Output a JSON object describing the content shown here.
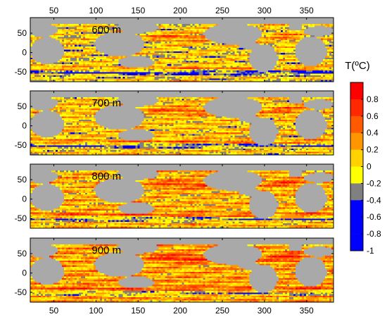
{
  "chart_data": {
    "type": "heatmap",
    "x_ticks": [
      "50",
      "100",
      "150",
      "200",
      "250",
      "300",
      "350"
    ],
    "x_tick_values": [
      50,
      100,
      150,
      200,
      250,
      300,
      350
    ],
    "xlim": [
      22,
      382
    ],
    "y_ticks": [
      "50",
      "0",
      "-50"
    ],
    "y_tick_values": [
      50,
      0,
      -50
    ],
    "ylim": [
      -75,
      90
    ],
    "x_ticks_top": true,
    "x_ticks_bottom": true,
    "grid": false,
    "land_color": "#a9a9a9",
    "panels": [
      {
        "label": "600 m",
        "depth_m": 600
      },
      {
        "label": "700 m",
        "depth_m": 700
      },
      {
        "label": "800 m",
        "depth_m": 800
      },
      {
        "label": "900 m",
        "depth_m": 900
      }
    ],
    "colorbar": {
      "title": "T(ºC)",
      "tick_labels": [
        "0.8",
        "0.6",
        "0.4",
        "0.2",
        "0",
        "-0.2",
        "-0.4",
        "-0.6",
        "-0.8",
        "-1"
      ],
      "tick_values": [
        0.8,
        0.6,
        0.4,
        0.2,
        0,
        -0.2,
        -0.4,
        -0.6,
        -0.8,
        -1
      ],
      "range": [
        -1,
        1
      ],
      "bins": [
        {
          "min": 0.8,
          "max": 1.0,
          "color": "#ff0000"
        },
        {
          "min": 0.6,
          "max": 0.8,
          "color": "#ff2800"
        },
        {
          "min": 0.4,
          "max": 0.6,
          "color": "#ff5a00"
        },
        {
          "min": 0.2,
          "max": 0.4,
          "color": "#ff9600"
        },
        {
          "min": 0.0,
          "max": 0.2,
          "color": "#ffd200"
        },
        {
          "min": -0.2,
          "max": 0.0,
          "color": "#ffff00"
        },
        {
          "min": -0.4,
          "max": -0.2,
          "color": "#808080"
        },
        {
          "min": -0.6,
          "max": -0.4,
          "color": "#0000ff"
        },
        {
          "min": -0.8,
          "max": -0.6,
          "color": "#0000ff"
        },
        {
          "min": -1.0,
          "max": -0.8,
          "color": "#0000ff"
        }
      ]
    }
  }
}
